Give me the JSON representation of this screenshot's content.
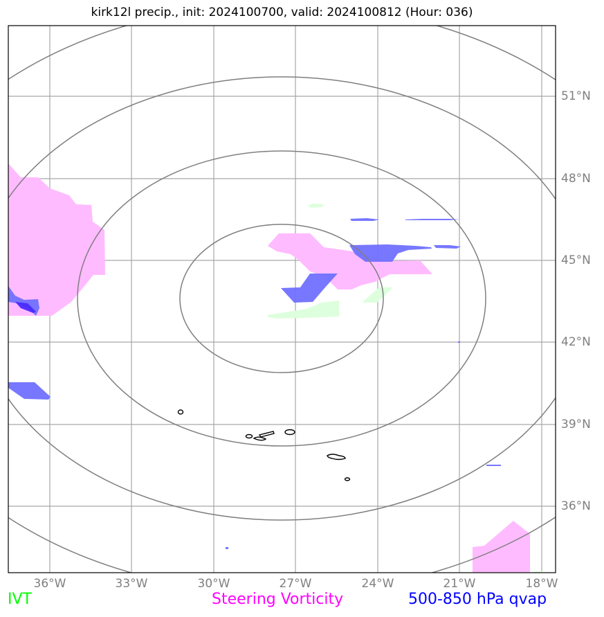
{
  "title": "kirk12l precip., init: 2024100700, valid: 2024100812 (Hour: 036)",
  "lat_labels": [
    "51°N",
    "48°N",
    "45°N",
    "42°N",
    "39°N",
    "36°N"
  ],
  "lon_labels": [
    "36°W",
    "33°W",
    "30°W",
    "27°W",
    "24°W",
    "21°W",
    "18°W"
  ],
  "legend": {
    "ivt": {
      "label": "IVT",
      "color": "#00ff00"
    },
    "vorticity": {
      "label": "Steering Vorticity",
      "color": "#ff00ff"
    },
    "qvap": {
      "label": "500-850 hPa qvap",
      "color": "#0000ff"
    }
  },
  "colors": {
    "grid": "#a6a6a6",
    "range_rings": "#7f7f7f",
    "ivt_fill": "#ddffdd",
    "vorticity_fill": "#ffbbff",
    "qvap_fill": "#7070ff",
    "precip_contour": "#000000"
  }
}
